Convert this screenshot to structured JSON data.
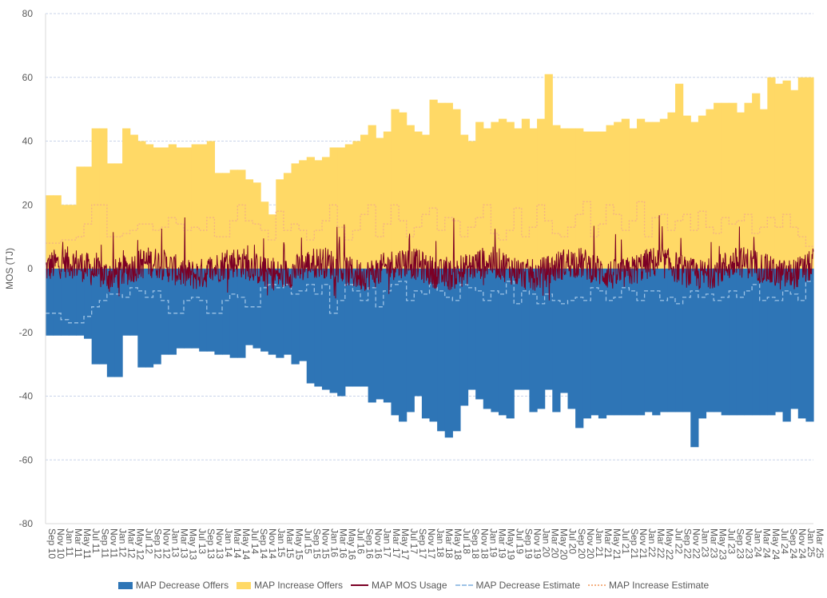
{
  "chart_data": {
    "type": "area",
    "title": "",
    "xlabel": "",
    "ylabel": "MOS (TJ)",
    "ylim": [
      -80,
      80
    ],
    "yticks": [
      -80,
      -60,
      -40,
      -20,
      0,
      20,
      40,
      60,
      80
    ],
    "grid": true,
    "legend_position": "bottom",
    "x_start": "Sep 10",
    "x_end": "Mar 25",
    "x_tick_labels": [
      "Sep 10",
      "Nov 10",
      "Jan 11",
      "Mar 11",
      "May 11",
      "Jul 11",
      "Sep 11",
      "Nov 11",
      "Jan 12",
      "Mar 12",
      "May 12",
      "Jul 12",
      "Sep 12",
      "Nov 12",
      "Jan 13",
      "Mar 13",
      "May 13",
      "Jul 13",
      "Sep 13",
      "Nov 13",
      "Jan 14",
      "Mar 14",
      "May 14",
      "Jul 14",
      "Sep 14",
      "Nov 14",
      "Jan 15",
      "Mar 15",
      "May 15",
      "Jul 15",
      "Sep 15",
      "Nov 15",
      "Jan 16",
      "Mar 16",
      "May 16",
      "Jul 16",
      "Sep 16",
      "Nov 16",
      "Jan 17",
      "Mar 17",
      "May 17",
      "Jul 17",
      "Sep 17",
      "Nov 17",
      "Jan 18",
      "Mar 18",
      "May 18",
      "Jul 18",
      "Sep 18",
      "Nov 18",
      "Jan 19",
      "Mar 19",
      "May 19",
      "Jul 19",
      "Sep 19",
      "Nov 19",
      "Jan 20",
      "Mar 20",
      "May 20",
      "Jul 20",
      "Sep 20",
      "Nov 20",
      "Jan 21",
      "Mar 21",
      "May 21",
      "Jul 21",
      "Sep 21",
      "Nov 21",
      "Jan 22",
      "Mar 22",
      "May 22",
      "Jul 22",
      "Sep 22",
      "Nov 22",
      "Jan 23",
      "Mar 23",
      "May 23",
      "Jul 23",
      "Sep 23",
      "Nov 23",
      "Jan 24",
      "Mar 24",
      "May 24",
      "Jul 24",
      "Sep 24",
      "Nov 24",
      "Jan 25",
      "Mar 25"
    ],
    "series": [
      {
        "name": "MAP Decrease Offers",
        "kind": "area",
        "color": "#2e75b6",
        "values": [
          -21,
          -21,
          -21,
          -21,
          -21,
          -22,
          -30,
          -30,
          -34,
          -34,
          -21,
          -21,
          -31,
          -31,
          -30,
          -27,
          -27,
          -25,
          -25,
          -25,
          -26,
          -26,
          -27,
          -27,
          -28,
          -28,
          -24,
          -25,
          -26,
          -27,
          -28,
          -27,
          -30,
          -29,
          -36,
          -37,
          -38,
          -39,
          -40,
          -37,
          -37,
          -37,
          -42,
          -41,
          -42,
          -46,
          -48,
          -45,
          -40,
          -47,
          -48,
          -51,
          -53,
          -51,
          -43,
          -38,
          -41,
          -44,
          -45,
          -46,
          -47,
          -38,
          -38,
          -45,
          -44,
          -38,
          -45,
          -39,
          -44,
          -50,
          -47,
          -46,
          -47,
          -46,
          -46,
          -46,
          -46,
          -46,
          -45,
          -46,
          -45,
          -45,
          -45,
          -45,
          -56,
          -47,
          -45,
          -45,
          -46,
          -46,
          -46,
          -46,
          -46,
          -46,
          -46,
          -45,
          -48,
          -44,
          -47,
          -48
        ]
      },
      {
        "name": "MAP Increase Offers",
        "kind": "area",
        "color": "#ffd966",
        "values": [
          23,
          23,
          20,
          20,
          32,
          32,
          44,
          44,
          33,
          33,
          44,
          42,
          40,
          39,
          38,
          38,
          39,
          38,
          38,
          39,
          39,
          40,
          30,
          30,
          31,
          31,
          28,
          27,
          21,
          17,
          28,
          30,
          33,
          34,
          35,
          34,
          35,
          38,
          38,
          39,
          40,
          42,
          45,
          41,
          43,
          50,
          49,
          45,
          43,
          42,
          53,
          52,
          52,
          50,
          42,
          40,
          46,
          44,
          46,
          47,
          46,
          44,
          47,
          44,
          47,
          61,
          45,
          44,
          44,
          44,
          43,
          43,
          43,
          45,
          46,
          47,
          44,
          47,
          46,
          46,
          47,
          49,
          58,
          48,
          46,
          48,
          50,
          52,
          52,
          52,
          49,
          52,
          55,
          50,
          60,
          58,
          59,
          56,
          60,
          60
        ]
      },
      {
        "name": "MAP MOS Usage",
        "kind": "line",
        "color": "#7b0025",
        "amplitude": 10,
        "values_note": ""
      },
      {
        "name": "MAP Decrease Estimate",
        "kind": "dashed-line",
        "color": "#9dc3e6",
        "values": [
          -14,
          -14,
          -16,
          -17,
          -17,
          -15,
          -12,
          -10,
          -8,
          -8,
          -9,
          -6,
          -7,
          -9,
          -7,
          -10,
          -14,
          -14,
          -10,
          -9,
          -10,
          -14,
          -14,
          -10,
          -8,
          -9,
          -12,
          -12,
          -6,
          -5,
          -6,
          -5,
          -8,
          -7,
          -5,
          -8,
          -5,
          -14,
          -10,
          -5,
          -7,
          -10,
          -6,
          -12,
          -7,
          -5,
          -4,
          -10,
          -7,
          -8,
          -5,
          -7,
          -9,
          -10,
          -5,
          -6,
          -7,
          -10,
          -7,
          -8,
          -4,
          -11,
          -7,
          -8,
          -11,
          -8,
          -10,
          -11,
          -10,
          -9,
          -10,
          -6,
          -7,
          -10,
          -9,
          -6,
          -7,
          -10,
          -7,
          -7,
          -10,
          -9,
          -11,
          -9,
          -7,
          -9,
          -8,
          -10,
          -9,
          -7,
          -9,
          -7,
          -5,
          -10,
          -9,
          -10,
          -7,
          -8,
          -10,
          -4
        ]
      },
      {
        "name": "MAP Increase Estimate",
        "kind": "dotted-line",
        "color": "#f4b183",
        "values": [
          8,
          8,
          9,
          9,
          10,
          14,
          20,
          20,
          10,
          10,
          11,
          12,
          14,
          14,
          12,
          13,
          16,
          14,
          12,
          13,
          12,
          16,
          10,
          10,
          15,
          20,
          15,
          14,
          12,
          9,
          18,
          12,
          14,
          12,
          9,
          12,
          15,
          20,
          13,
          9,
          12,
          17,
          20,
          10,
          14,
          20,
          15,
          10,
          13,
          17,
          19,
          12,
          16,
          15,
          10,
          13,
          16,
          20,
          11,
          9,
          12,
          19,
          10,
          13,
          20,
          15,
          11,
          10,
          13,
          17,
          21,
          10,
          14,
          20,
          17,
          12,
          15,
          21,
          10,
          16,
          17,
          12,
          15,
          17,
          12,
          18,
          13,
          11,
          16,
          14,
          15,
          17,
          11,
          13,
          16,
          13,
          17,
          13,
          10,
          7
        ]
      }
    ]
  },
  "legend": {
    "items": [
      {
        "label": "MAP Decrease Offers"
      },
      {
        "label": "MAP Increase Offers"
      },
      {
        "label": "MAP MOS Usage"
      },
      {
        "label": "MAP Decrease Estimate"
      },
      {
        "label": "MAP Increase Estimate"
      }
    ]
  }
}
